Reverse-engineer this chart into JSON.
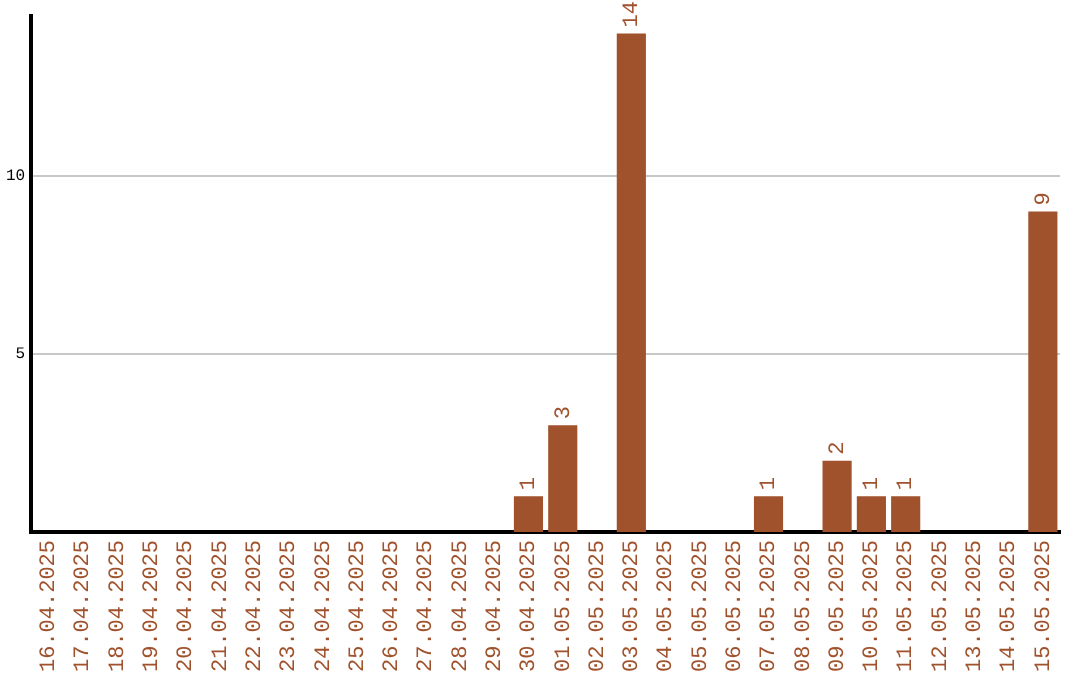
{
  "chart_data": {
    "type": "bar",
    "categories": [
      "16.04.2025",
      "17.04.2025",
      "18.04.2025",
      "19.04.2025",
      "20.04.2025",
      "21.04.2025",
      "22.04.2025",
      "23.04.2025",
      "24.04.2025",
      "25.04.2025",
      "26.04.2025",
      "27.04.2025",
      "28.04.2025",
      "29.04.2025",
      "30.04.2025",
      "01.05.2025",
      "02.05.2025",
      "03.05.2025",
      "04.05.2025",
      "05.05.2025",
      "06.05.2025",
      "07.05.2025",
      "08.05.2025",
      "09.05.2025",
      "10.05.2025",
      "11.05.2025",
      "12.05.2025",
      "13.05.2025",
      "14.05.2025",
      "15.05.2025"
    ],
    "values": [
      0,
      0,
      0,
      0,
      0,
      0,
      0,
      0,
      0,
      0,
      0,
      0,
      0,
      0,
      1,
      3,
      0,
      14,
      0,
      0,
      0,
      1,
      0,
      2,
      1,
      1,
      0,
      0,
      0,
      9
    ],
    "value_labels": [
      null,
      null,
      null,
      null,
      null,
      null,
      null,
      null,
      null,
      null,
      null,
      null,
      null,
      null,
      "1",
      "3",
      null,
      "14",
      null,
      null,
      null,
      "1",
      null,
      "2",
      "1",
      "1",
      null,
      null,
      null,
      "9"
    ],
    "color": "#a0522d",
    "ylim": [
      0,
      14.5
    ],
    "yticks": [
      5,
      10
    ],
    "grid": "y",
    "legend": false
  }
}
